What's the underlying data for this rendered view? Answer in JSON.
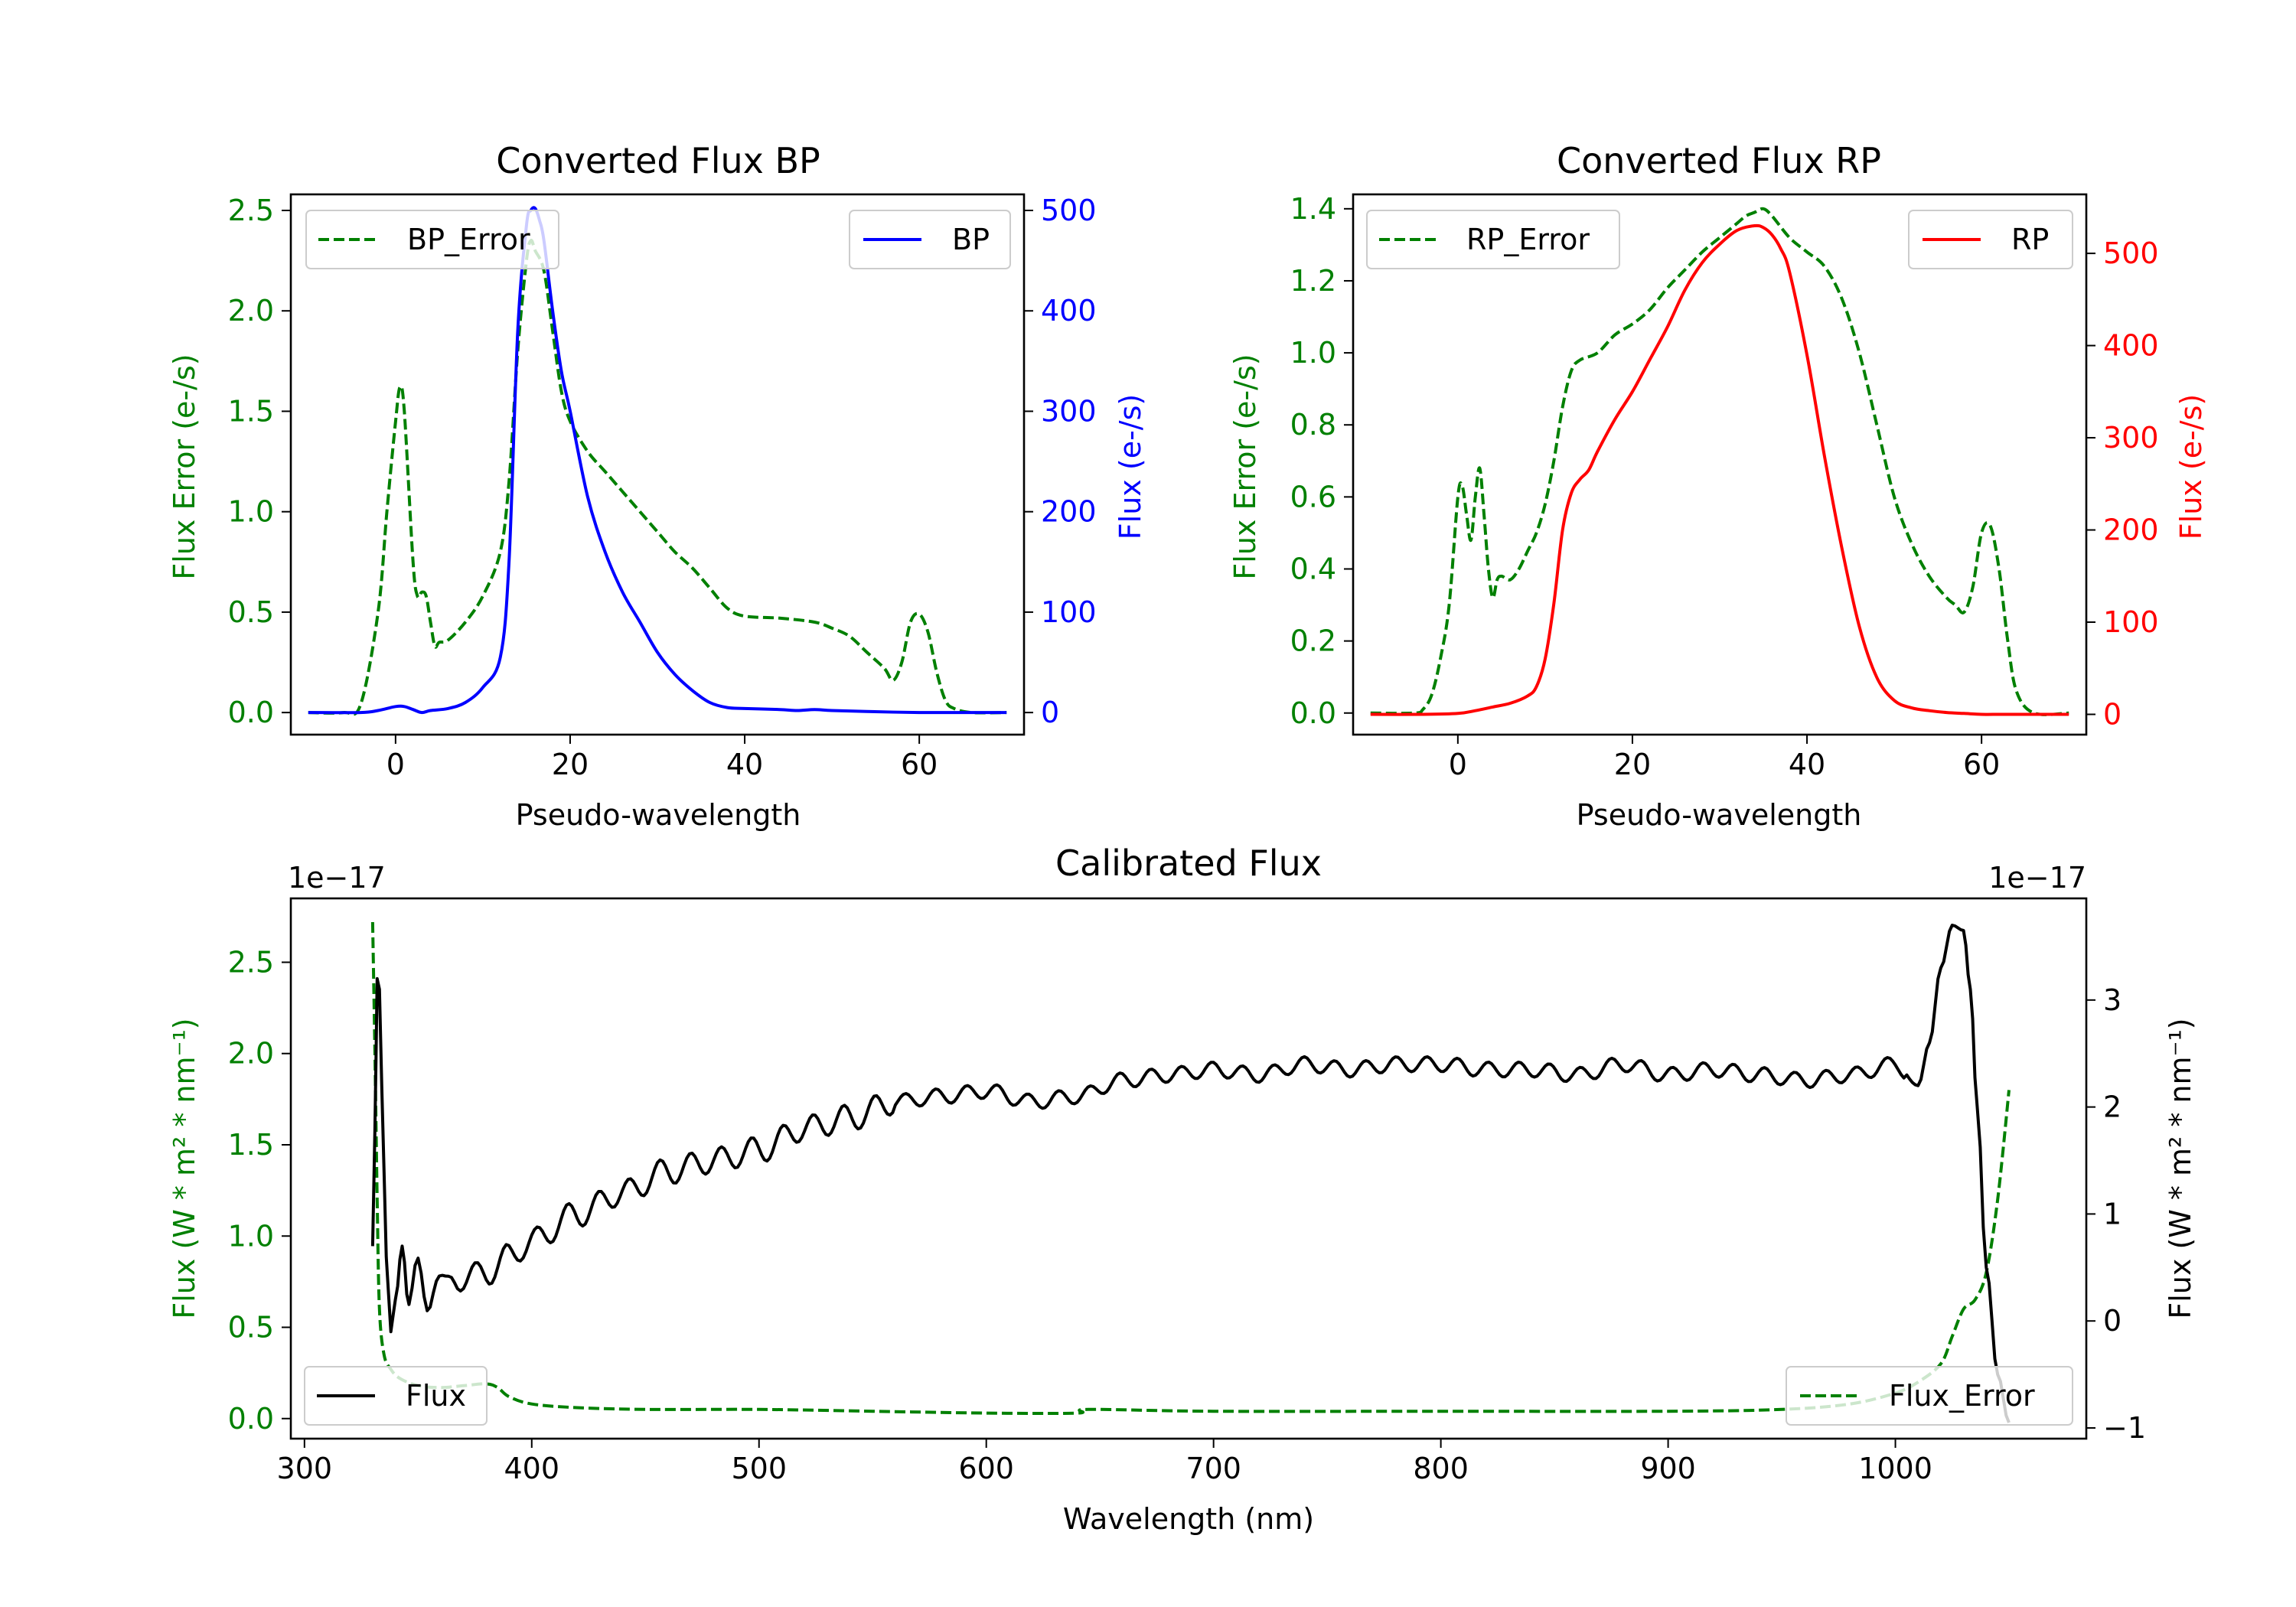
{
  "chart_data": [
    {
      "id": "bp",
      "type": "line",
      "title": "Converted Flux BP",
      "xlabel": "Pseudo-wavelength",
      "xlim": [
        -12,
        72
      ],
      "xticks": [
        0,
        20,
        40,
        60
      ],
      "left_axis": {
        "label": "Flux Error (e-/s)",
        "color": "#008000",
        "ylim": [
          -0.11,
          2.58
        ],
        "ticks": [
          0.0,
          0.5,
          1.0,
          1.5,
          2.0,
          2.5
        ],
        "tick_labels": [
          "0.0",
          "0.5",
          "1.0",
          "1.5",
          "2.0",
          "2.5"
        ]
      },
      "right_axis": {
        "label": "Flux (e-/s)",
        "color": "#0000ff",
        "ylim": [
          -22,
          516
        ],
        "ticks": [
          0,
          100,
          200,
          300,
          400,
          500
        ],
        "tick_labels": [
          "0",
          "100",
          "200",
          "300",
          "400",
          "500"
        ]
      },
      "series": [
        {
          "name": "BP_Error",
          "axis": "left",
          "color": "#008000",
          "dash": true,
          "x": [
            -10,
            -6,
            -4,
            -2,
            -1,
            0,
            0.5,
            1,
            2,
            2.5,
            3,
            3.5,
            4,
            4.5,
            5,
            6,
            8,
            10,
            12,
            13,
            14,
            15,
            15.5,
            16,
            17,
            18,
            19,
            20,
            22,
            24,
            26,
            28,
            30,
            32,
            34,
            36,
            38,
            40,
            44,
            48,
            50,
            52,
            54,
            56,
            57,
            58,
            59,
            60,
            61,
            62,
            63,
            64,
            66,
            70
          ],
          "values": [
            0,
            0,
            0.04,
            0.5,
            1.0,
            1.45,
            1.62,
            1.5,
            0.75,
            0.58,
            0.6,
            0.58,
            0.45,
            0.33,
            0.35,
            0.36,
            0.45,
            0.58,
            0.8,
            1.15,
            1.8,
            2.25,
            2.35,
            2.3,
            2.2,
            1.9,
            1.6,
            1.45,
            1.3,
            1.2,
            1.1,
            1.0,
            0.9,
            0.8,
            0.72,
            0.62,
            0.52,
            0.48,
            0.47,
            0.45,
            0.42,
            0.38,
            0.3,
            0.22,
            0.16,
            0.25,
            0.45,
            0.49,
            0.4,
            0.2,
            0.06,
            0.02,
            0,
            0
          ]
        },
        {
          "name": "BP",
          "axis": "right",
          "color": "#0000ff",
          "dash": false,
          "x": [
            -10,
            -4,
            -2,
            0,
            1,
            2,
            3,
            4,
            6,
            8,
            10,
            12,
            13,
            14,
            15,
            15.5,
            16,
            16.5,
            17,
            18,
            19,
            20,
            22,
            24,
            26,
            28,
            30,
            32,
            34,
            36,
            38,
            40,
            44,
            46,
            48,
            50,
            54,
            60,
            64,
            70
          ],
          "values": [
            0,
            0,
            2,
            6,
            6,
            3,
            0,
            2,
            4,
            10,
            25,
            55,
            150,
            380,
            485,
            500,
            502,
            490,
            470,
            400,
            340,
            300,
            215,
            160,
            120,
            90,
            60,
            38,
            22,
            10,
            5,
            4,
            3,
            2,
            3,
            2,
            1,
            0,
            0,
            0
          ]
        }
      ],
      "legends": [
        {
          "label": "BP_Error",
          "placement": "upper-left"
        },
        {
          "label": "BP",
          "placement": "upper-right"
        }
      ]
    },
    {
      "id": "rp",
      "type": "line",
      "title": "Converted Flux RP",
      "xlabel": "Pseudo-wavelength",
      "xlim": [
        -12,
        72
      ],
      "xticks": [
        0,
        20,
        40,
        60
      ],
      "left_axis": {
        "label": "Flux Error (e-/s)",
        "color": "#008000",
        "ylim": [
          -0.06,
          1.44
        ],
        "ticks": [
          0.0,
          0.2,
          0.4,
          0.6,
          0.8,
          1.0,
          1.2,
          1.4
        ],
        "tick_labels": [
          "0.0",
          "0.2",
          "0.4",
          "0.6",
          "0.8",
          "1.0",
          "1.2",
          "1.4"
        ]
      },
      "right_axis": {
        "label": "Flux (e-/s)",
        "color": "#ff0000",
        "ylim": [
          -22,
          564
        ],
        "ticks": [
          0,
          100,
          200,
          300,
          400,
          500
        ],
        "tick_labels": [
          "0",
          "100",
          "200",
          "300",
          "400",
          "500"
        ]
      },
      "series": [
        {
          "name": "RP_Error",
          "axis": "left",
          "color": "#008000",
          "dash": true,
          "x": [
            -10,
            -5,
            -4,
            -3,
            -2,
            -1,
            0,
            0.5,
            1,
            1.5,
            2,
            2.5,
            3,
            3.5,
            4,
            4.5,
            5,
            6,
            7,
            8,
            9,
            10,
            11,
            12,
            13,
            14,
            16,
            18,
            20,
            22,
            24,
            26,
            28,
            30,
            32,
            33,
            34,
            35,
            36,
            38,
            40,
            42,
            44,
            46,
            48,
            50,
            52,
            54,
            56,
            57,
            58,
            59,
            60,
            61,
            62,
            63,
            64,
            66,
            70
          ],
          "values": [
            0,
            0,
            0.01,
            0.05,
            0.15,
            0.3,
            0.6,
            0.63,
            0.55,
            0.48,
            0.6,
            0.68,
            0.55,
            0.4,
            0.32,
            0.37,
            0.38,
            0.37,
            0.4,
            0.45,
            0.5,
            0.58,
            0.7,
            0.85,
            0.95,
            0.98,
            1.0,
            1.05,
            1.08,
            1.12,
            1.18,
            1.23,
            1.28,
            1.32,
            1.36,
            1.38,
            1.39,
            1.4,
            1.38,
            1.32,
            1.28,
            1.24,
            1.15,
            1.0,
            0.8,
            0.6,
            0.47,
            0.38,
            0.32,
            0.3,
            0.28,
            0.35,
            0.5,
            0.52,
            0.4,
            0.2,
            0.06,
            0,
            0
          ]
        },
        {
          "name": "RP",
          "axis": "right",
          "color": "#ff0000",
          "dash": false,
          "x": [
            -10,
            -4,
            0,
            2,
            4,
            6,
            8,
            9,
            10,
            11,
            12,
            13,
            14,
            15,
            16,
            18,
            20,
            22,
            24,
            26,
            28,
            30,
            32,
            34,
            35,
            36,
            37,
            38,
            40,
            42,
            44,
            46,
            48,
            50,
            52,
            54,
            56,
            58,
            60,
            62,
            64,
            66,
            70
          ],
          "values": [
            0,
            0,
            1,
            4,
            8,
            12,
            20,
            30,
            60,
            120,
            200,
            240,
            255,
            265,
            285,
            320,
            350,
            385,
            420,
            460,
            490,
            510,
            525,
            530,
            528,
            520,
            505,
            480,
            390,
            280,
            180,
            95,
            40,
            15,
            7,
            4,
            2,
            1,
            0,
            0,
            0,
            0,
            0
          ]
        }
      ],
      "legends": [
        {
          "label": "RP_Error",
          "placement": "upper-left"
        },
        {
          "label": "RP",
          "placement": "upper-right"
        }
      ]
    },
    {
      "id": "cal",
      "type": "line",
      "title": "Calibrated Flux",
      "xlabel": "Wavelength (nm)",
      "xlim": [
        294,
        1084
      ],
      "xticks": [
        300,
        400,
        500,
        600,
        700,
        800,
        900,
        1000
      ],
      "left_axis": {
        "label": "Flux (W * m² * nm⁻¹)",
        "color": "#008000",
        "ylim": [
          -0.11,
          2.85
        ],
        "offset_text": "1e−17",
        "ticks": [
          0.0,
          0.5,
          1.0,
          1.5,
          2.0,
          2.5
        ],
        "tick_labels": [
          "0.0",
          "0.5",
          "1.0",
          "1.5",
          "2.0",
          "2.5"
        ]
      },
      "right_axis": {
        "label": "Flux (W * m² * nm⁻¹)",
        "color": "#000000",
        "ylim": [
          -1.1,
          3.95
        ],
        "offset_text": "1e−17",
        "ticks": [
          -1,
          0,
          1,
          2,
          3
        ],
        "tick_labels": [
          "−1",
          "0",
          "1",
          "2",
          "3"
        ]
      },
      "series": [
        {
          "name": "Flux_Error",
          "axis": "left",
          "color": "#008000",
          "dash": true,
          "x": [
            330,
            331,
            332,
            333,
            335,
            338,
            342,
            350,
            360,
            370,
            380,
            385,
            390,
            400,
            420,
            450,
            500,
            550,
            600,
            640,
            645,
            700,
            800,
            900,
            950,
            980,
            1000,
            1010,
            1020,
            1025,
            1030,
            1035,
            1040,
            1045,
            1050
          ],
          "values": [
            2.72,
            2.0,
            1.2,
            0.6,
            0.35,
            0.27,
            0.22,
            0.18,
            0.17,
            0.18,
            0.19,
            0.17,
            0.12,
            0.08,
            0.06,
            0.05,
            0.05,
            0.04,
            0.03,
            0.03,
            0.05,
            0.04,
            0.04,
            0.04,
            0.05,
            0.08,
            0.14,
            0.2,
            0.3,
            0.45,
            0.6,
            0.65,
            0.8,
            1.2,
            1.8
          ]
        },
        {
          "name": "Flux",
          "axis": "right",
          "color": "#000000",
          "generated_from": "smooth trend with ripple, black solid line",
          "x": [
            330,
            331,
            332,
            333,
            334,
            336,
            338,
            340,
            343,
            346,
            350,
            354,
            358,
            362,
            366,
            370,
            380,
            390,
            400,
            420,
            440,
            460,
            480,
            500,
            520,
            540,
            560,
            580,
            600,
            620,
            640,
            660,
            680,
            700,
            720,
            740,
            760,
            780,
            800,
            820,
            840,
            860,
            880,
            900,
            920,
            940,
            960,
            980,
            1000,
            1010,
            1015,
            1020,
            1025,
            1030,
            1033,
            1036,
            1040,
            1045,
            1050
          ],
          "values": [
            0.7,
            1.8,
            3.2,
            3.1,
            2.2,
            0.6,
            -0.1,
            0.2,
            0.7,
            0.1,
            0.5,
            0.2,
            0.4,
            0.3,
            0.4,
            0.4,
            0.45,
            0.6,
            0.75,
            1.0,
            1.2,
            1.4,
            1.5,
            1.6,
            1.8,
            1.9,
            2.05,
            2.1,
            2.15,
            2.05,
            2.1,
            2.25,
            2.3,
            2.35,
            2.3,
            2.4,
            2.35,
            2.4,
            2.4,
            2.35,
            2.35,
            2.3,
            2.4,
            2.3,
            2.35,
            2.3,
            2.25,
            2.3,
            2.4,
            2.2,
            2.6,
            3.3,
            3.7,
            3.65,
            3.1,
            2.0,
            0.5,
            -0.5,
            -0.95
          ]
        }
      ],
      "legends": [
        {
          "label": "Flux",
          "placement": "lower-left"
        },
        {
          "label": "Flux_Error",
          "placement": "lower-right"
        }
      ]
    }
  ]
}
